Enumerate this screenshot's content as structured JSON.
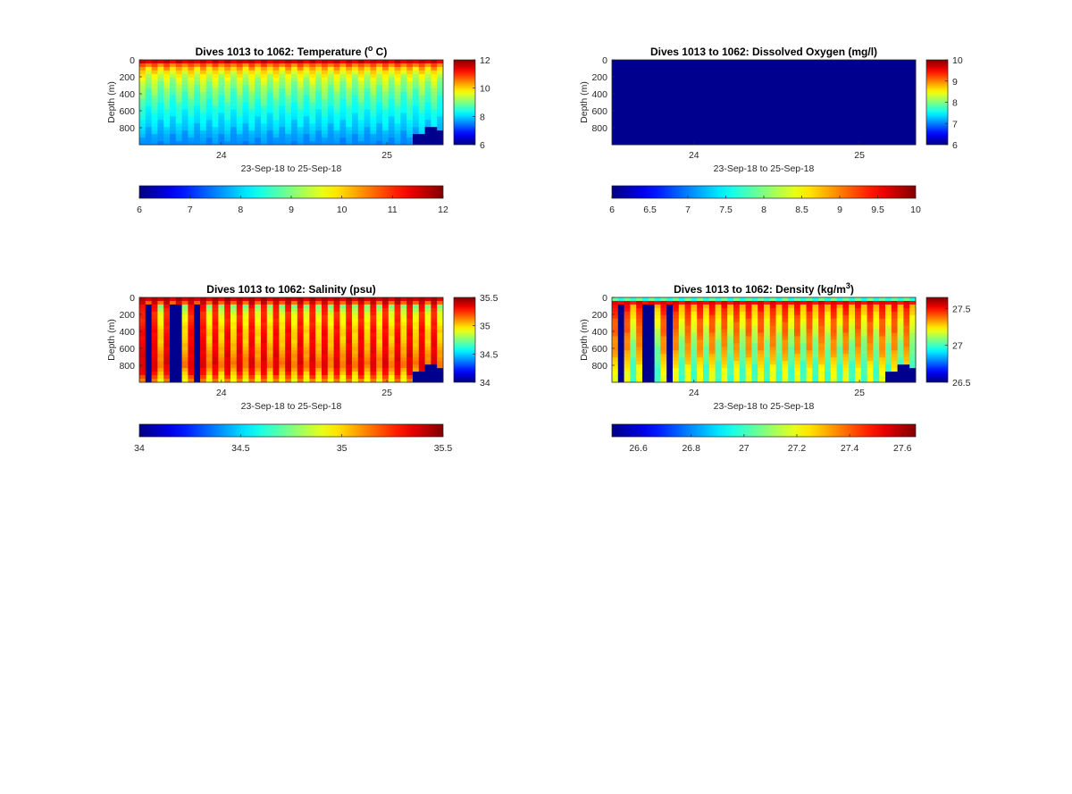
{
  "figure": {
    "background": "#ffffff"
  },
  "chart_data": [
    {
      "type": "heatmap",
      "title": "Dives 1013 to 1062: Temperature (",
      "title_superscript": "o",
      "title_suffix": " C)",
      "xlabel": "23-Sep-18 to 25-Sep-18",
      "ylabel": "Depth (m)",
      "xticks": [
        "24",
        "25"
      ],
      "yticks": [
        "0",
        "200",
        "400",
        "600",
        "800"
      ],
      "ylim": [
        0,
        1000
      ],
      "yreversed": true,
      "colormap": "jet",
      "clim": [
        6,
        12
      ],
      "right_colorbar_ticks": [
        "6",
        "8",
        "10",
        "12"
      ],
      "bottom_colorbar_ticks": [
        "6",
        "7",
        "8",
        "9",
        "10",
        "11",
        "12"
      ],
      "dives": 50,
      "profile_depths_m": [
        0,
        25,
        50,
        100,
        150,
        200,
        300,
        400,
        500,
        600,
        700,
        800,
        900,
        1000
      ],
      "profile_values": [
        11.9,
        11.6,
        11.0,
        10.4,
        10.0,
        9.8,
        9.4,
        9.1,
        8.8,
        8.5,
        8.3,
        8.1,
        7.8,
        7.6
      ],
      "alternate_column_profile": [
        11.7,
        11.3,
        10.6,
        9.9,
        9.5,
        9.2,
        8.9,
        8.6,
        8.4,
        8.2,
        8.0,
        7.8,
        7.6,
        7.5
      ],
      "missing_columns": [],
      "bottom_mask": [
        {
          "dive": 45,
          "from_depth": 880
        },
        {
          "dive": 46,
          "from_depth": 880
        },
        {
          "dive": 47,
          "from_depth": 780
        },
        {
          "dive": 48,
          "from_depth": 780
        },
        {
          "dive": 49,
          "from_depth": 840
        }
      ]
    },
    {
      "type": "heatmap",
      "title": "Dives 1013 to 1062: Dissolved Oxygen (mg/l)",
      "title_superscript": "",
      "title_suffix": "",
      "xlabel": "23-Sep-18 to 25-Sep-18",
      "ylabel": "Depth (m)",
      "xticks": [
        "24",
        "25"
      ],
      "yticks": [
        "0",
        "200",
        "400",
        "600",
        "800"
      ],
      "ylim": [
        0,
        1000
      ],
      "yreversed": true,
      "colormap": "jet",
      "clim": [
        6,
        10
      ],
      "right_colorbar_ticks": [
        "6",
        "7",
        "8",
        "9",
        "10"
      ],
      "bottom_colorbar_ticks": [
        "6",
        "6.5",
        "7",
        "7.5",
        "8",
        "8.5",
        "9",
        "9.5",
        "10"
      ],
      "dives": 50,
      "profile_depths_m": [
        0,
        1000
      ],
      "profile_values": [
        5.0,
        5.0
      ],
      "alternate_column_profile": [
        5.0,
        5.0
      ],
      "missing_columns": [],
      "bottom_mask": []
    },
    {
      "type": "heatmap",
      "title": "Dives 1013 to 1062: Salinity (psu)",
      "title_superscript": "",
      "title_suffix": "",
      "xlabel": "23-Sep-18 to 25-Sep-18",
      "ylabel": "Depth (m)",
      "xticks": [
        "24",
        "25"
      ],
      "yticks": [
        "0",
        "200",
        "400",
        "600",
        "800"
      ],
      "ylim": [
        0,
        1000
      ],
      "yreversed": true,
      "colormap": "jet",
      "clim": [
        34,
        35.5
      ],
      "right_colorbar_ticks": [
        "34",
        "34.5",
        "35",
        "35.5"
      ],
      "bottom_colorbar_ticks": [
        "34",
        "34.5",
        "35",
        "35.5"
      ],
      "dives": 50,
      "profile_depths_m": [
        0,
        50,
        100,
        200,
        300,
        400,
        500,
        600,
        700,
        800,
        900,
        1000
      ],
      "profile_values": [
        35.45,
        35.42,
        35.3,
        35.25,
        35.27,
        35.3,
        35.32,
        35.33,
        35.35,
        35.36,
        35.3,
        35.1
      ],
      "alternate_column_profile": [
        35.4,
        35.3,
        34.75,
        34.9,
        34.95,
        35.0,
        35.0,
        35.05,
        35.1,
        35.15,
        35.0,
        34.9
      ],
      "missing_columns": [
        1,
        5,
        6,
        9
      ],
      "bottom_mask": [
        {
          "dive": 45,
          "from_depth": 880
        },
        {
          "dive": 46,
          "from_depth": 880
        },
        {
          "dive": 47,
          "from_depth": 780
        },
        {
          "dive": 48,
          "from_depth": 780
        },
        {
          "dive": 49,
          "from_depth": 840
        }
      ]
    },
    {
      "type": "heatmap",
      "title": "Dives 1013 to 1062: Density (kg/m",
      "title_superscript": "3",
      "title_suffix": ")",
      "xlabel": "23-Sep-18 to 25-Sep-18",
      "ylabel": "Depth (m)",
      "xticks": [
        "24",
        "25"
      ],
      "yticks": [
        "0",
        "200",
        "400",
        "600",
        "800"
      ],
      "ylim": [
        0,
        1000
      ],
      "yreversed": true,
      "colormap": "jet",
      "clim": [
        26.5,
        27.65
      ],
      "right_colorbar_ticks": [
        "26.5",
        "27",
        "27.5"
      ],
      "bottom_colorbar_ticks": [
        "26.6",
        "26.8",
        "27",
        "27.2",
        "27.4",
        "27.6"
      ],
      "dives": 50,
      "profile_depths_m": [
        0,
        30,
        60,
        100,
        200,
        300,
        400,
        500,
        600,
        700,
        800,
        900,
        1000
      ],
      "profile_values": [
        27.2,
        27.0,
        27.55,
        27.5,
        27.45,
        27.4,
        27.4,
        27.35,
        27.35,
        27.3,
        27.25,
        27.2,
        27.2
      ],
      "alternate_column_profile": [
        27.1,
        26.9,
        27.5,
        27.3,
        27.25,
        27.2,
        27.15,
        27.1,
        27.05,
        27.05,
        27.0,
        27.0,
        27.0
      ],
      "missing_columns": [
        1,
        5,
        6,
        9
      ],
      "bottom_mask": [
        {
          "dive": 45,
          "from_depth": 880
        },
        {
          "dive": 46,
          "from_depth": 880
        },
        {
          "dive": 47,
          "from_depth": 780
        },
        {
          "dive": 48,
          "from_depth": 780
        },
        {
          "dive": 49,
          "from_depth": 840
        }
      ]
    }
  ]
}
